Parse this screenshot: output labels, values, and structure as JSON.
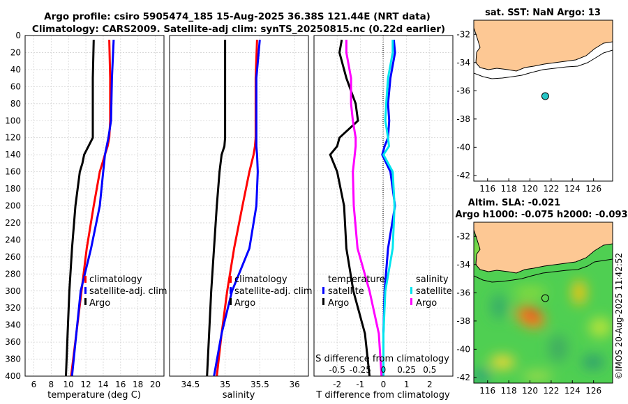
{
  "header": {
    "line1": "Argo profile: csiro 5905474_185 15-Aug-2025 36.38S 121.44E (NRT data)",
    "line2": "Climatology: CARS2009. Satellite-adj clim: synTS_20250815.nc (0.22d earlier)"
  },
  "colors": {
    "climatology": "#ff0000",
    "satellite_adj": "#0000ff",
    "argo": "#000000",
    "salinity_satellite": "#00e5ee",
    "salinity_argo": "#ff00ff",
    "land": "#fdc894",
    "sst_marker": "#26c6c6"
  },
  "legend_labels": {
    "climatology": "climatology",
    "satellite_adj": "satellite-adj. clim",
    "argo": "Argo",
    "temperature": "temperature",
    "salinity": "salinity",
    "satellite": "satellite"
  },
  "chart_data": [
    {
      "type": "line",
      "id": "temperature-profile",
      "xlabel": "temperature (deg C)",
      "ylabel": "",
      "xlim": [
        5,
        21
      ],
      "ylim": [
        400,
        0
      ],
      "xticks": [
        6,
        8,
        10,
        12,
        14,
        16,
        18,
        20
      ],
      "yticks": [
        0,
        20,
        40,
        60,
        80,
        100,
        120,
        140,
        160,
        180,
        200,
        220,
        240,
        260,
        280,
        300,
        320,
        340,
        360,
        380,
        400
      ],
      "depth": [
        5,
        50,
        100,
        120,
        130,
        140,
        150,
        160,
        200,
        250,
        300,
        350,
        400
      ],
      "series": [
        {
          "name": "climatology",
          "values": [
            14.7,
            14.8,
            14.8,
            14.7,
            14.5,
            14.2,
            13.9,
            13.6,
            12.9,
            12.1,
            11.5,
            10.9,
            10.3
          ]
        },
        {
          "name": "satellite-adj. clim",
          "values": [
            15.2,
            15.0,
            14.9,
            14.6,
            14.4,
            14.2,
            14.1,
            14.0,
            13.6,
            12.6,
            11.4,
            10.9,
            10.4
          ]
        },
        {
          "name": "Argo",
          "values": [
            12.9,
            12.8,
            12.8,
            12.8,
            12.3,
            11.8,
            11.6,
            11.3,
            10.8,
            10.4,
            10.1,
            9.9,
            9.7
          ]
        }
      ]
    },
    {
      "type": "line",
      "id": "salinity-profile",
      "xlabel": "salinity",
      "ylabel": "",
      "xlim": [
        34.2,
        36.2
      ],
      "ylim": [
        400,
        0
      ],
      "xticks": [
        34.5,
        35,
        35.5,
        36
      ],
      "xtick_labels": [
        "34.5",
        "35",
        "35.5",
        "36"
      ],
      "depth": [
        5,
        50,
        100,
        120,
        130,
        140,
        160,
        200,
        250,
        300,
        350,
        400
      ],
      "series": [
        {
          "name": "climatology",
          "values": [
            35.46,
            35.44,
            35.44,
            35.44,
            35.43,
            35.41,
            35.35,
            35.25,
            35.13,
            35.03,
            34.95,
            34.88
          ]
        },
        {
          "name": "satellite-adj. clim",
          "values": [
            35.5,
            35.45,
            35.45,
            35.45,
            35.45,
            35.46,
            35.47,
            35.45,
            35.35,
            35.1,
            34.95,
            34.84
          ]
        },
        {
          "name": "Argo",
          "values": [
            35.0,
            35.0,
            35.0,
            35.0,
            34.99,
            34.95,
            34.92,
            34.88,
            34.84,
            34.8,
            34.77,
            34.74
          ]
        }
      ]
    },
    {
      "type": "line",
      "id": "difference-profile",
      "xlabel": "T difference from climatology",
      "xlabel_top": "S difference from climatology",
      "xlim": [
        -3,
        3
      ],
      "ylim": [
        400,
        0
      ],
      "xticks": [
        -2,
        -1,
        0,
        1,
        2
      ],
      "secondary_xticks": [
        -0.5,
        -0.25,
        0,
        0.25,
        0.5
      ],
      "secondary_xtick_labels": [
        "-0.5",
        "-0.25",
        "0",
        "0.25",
        "0.5"
      ],
      "depth": [
        5,
        20,
        50,
        80,
        100,
        120,
        130,
        140,
        160,
        200,
        250,
        300,
        350,
        400
      ],
      "series": [
        {
          "name": "temperature satellite",
          "values": [
            0.45,
            0.5,
            0.3,
            0.2,
            0.25,
            0.2,
            0.05,
            -0.05,
            0.3,
            0.5,
            0.2,
            0.05,
            0.0,
            0.0
          ]
        },
        {
          "name": "temperature Argo",
          "values": [
            -1.8,
            -1.9,
            -1.6,
            -1.2,
            -1.1,
            -1.9,
            -2.0,
            -2.3,
            -2.0,
            -1.7,
            -1.6,
            -1.3,
            -0.8,
            -0.6
          ]
        },
        {
          "name": "salinity satellite",
          "values": [
            0.1,
            0.1,
            0.05,
            0.03,
            0.02,
            0.05,
            0.06,
            0.0,
            0.1,
            0.12,
            0.1,
            0.02,
            0.0,
            0.0
          ]
        },
        {
          "name": "salinity Argo",
          "values": [
            -0.4,
            -0.4,
            -0.35,
            -0.35,
            -0.33,
            -0.3,
            -0.3,
            -0.31,
            -0.33,
            -0.32,
            -0.28,
            -0.15,
            -0.05,
            -0.02
          ]
        }
      ]
    },
    {
      "type": "scatter",
      "id": "sst-map",
      "title": "sat. SST: NaN Argo: 13",
      "xlim": [
        114.7,
        127.8
      ],
      "ylim": [
        -42.4,
        -31.0
      ],
      "xticks": [
        116,
        118,
        120,
        122,
        124,
        126
      ],
      "yticks": [
        -32,
        -34,
        -36,
        -38,
        -40,
        -42
      ],
      "points": [
        {
          "lon": 121.44,
          "lat": -36.38
        }
      ]
    },
    {
      "type": "heatmap",
      "id": "sla-map",
      "title1": "Altim. SLA: -0.021",
      "title2": "Argo h1000: -0.075 h2000: -0.093",
      "xlim": [
        114.7,
        127.8
      ],
      "ylim": [
        -42.4,
        -31.0
      ],
      "xticks": [
        116,
        118,
        120,
        122,
        124,
        126
      ],
      "yticks": [
        -32,
        -34,
        -36,
        -38,
        -40,
        -42
      ],
      "points": [
        {
          "lon": 121.44,
          "lat": -36.38
        }
      ]
    }
  ],
  "stamp": "©IMOS 20-Aug-2025 11:42:52"
}
